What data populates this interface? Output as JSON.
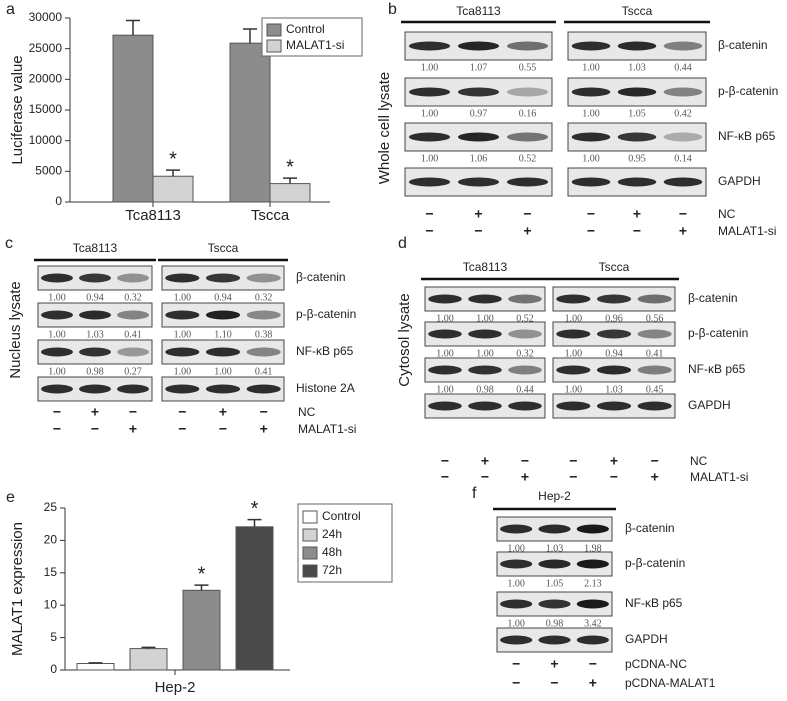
{
  "chart_data": [
    {
      "type": "bar",
      "panel_label": "a",
      "ylabel": "Luciferase value",
      "categories": [
        "Tca8113",
        "Tscca"
      ],
      "series": [
        {
          "name": "Control",
          "color": "#8c8c8c",
          "values": [
            27200,
            25900
          ],
          "errors": [
            2400,
            2300
          ]
        },
        {
          "name": "MALAT1-si",
          "color": "#d2d2d2",
          "values": [
            4200,
            3000
          ],
          "errors": [
            1000,
            900
          ],
          "markers": [
            "*",
            "*"
          ]
        }
      ],
      "ylim": [
        0,
        30000
      ],
      "yticks": [
        0,
        5000,
        10000,
        15000,
        20000,
        25000,
        30000
      ]
    },
    {
      "type": "bar",
      "panel_label": "e",
      "ylabel": "MALAT1 expression",
      "categories": [
        "Hep-2"
      ],
      "series": [
        {
          "name": "Control",
          "color": "#ffffff",
          "values": [
            1.0
          ],
          "errors": [
            0.1
          ]
        },
        {
          "name": "24h",
          "color": "#d3d3d3",
          "values": [
            3.3
          ],
          "errors": [
            0.2
          ]
        },
        {
          "name": "48h",
          "color": "#8c8c8c",
          "values": [
            12.3
          ],
          "errors": [
            0.8
          ],
          "markers": [
            "*"
          ]
        },
        {
          "name": "72h",
          "color": "#4a4a4a",
          "values": [
            22.1
          ],
          "errors": [
            1.1
          ],
          "markers": [
            "*"
          ]
        }
      ],
      "ylim": [
        0,
        25
      ],
      "yticks": [
        0,
        5,
        10,
        15,
        20,
        25
      ]
    }
  ],
  "blots": [
    {
      "panel_label": "b",
      "side_label": "Whole cell lysate",
      "groups": [
        "Tca8113",
        "Tscca"
      ],
      "rows": [
        {
          "name": "β-catenin",
          "values": [
            [
              "1.00",
              "1.07",
              "0.55"
            ],
            [
              "1.00",
              "1.03",
              "0.44"
            ]
          ]
        },
        {
          "name": "p-β-catenin",
          "values": [
            [
              "1.00",
              "0.97",
              "0.16"
            ],
            [
              "1.00",
              "1.05",
              "0.42"
            ]
          ]
        },
        {
          "name": "NF-κB p65",
          "values": [
            [
              "1.00",
              "1.06",
              "0.52"
            ],
            [
              "1.00",
              "0.95",
              "0.14"
            ]
          ]
        },
        {
          "name": "GAPDH"
        }
      ],
      "conditions": [
        {
          "name": "NC",
          "signs": [
            "−",
            "+",
            "−",
            "−",
            "+",
            "−"
          ]
        },
        {
          "name": "MALAT1-si",
          "signs": [
            "−",
            "−",
            "+",
            "−",
            "−",
            "+"
          ]
        }
      ]
    },
    {
      "panel_label": "c",
      "side_label": "Nucleus lysate",
      "groups": [
        "Tca8113",
        "Tscca"
      ],
      "rows": [
        {
          "name": "β-catenin",
          "values": [
            [
              "1.00",
              "0.94",
              "0.32"
            ],
            [
              "1.00",
              "0.94",
              "0.32"
            ]
          ]
        },
        {
          "name": "p-β-catenin",
          "values": [
            [
              "1.00",
              "1.03",
              "0.41"
            ],
            [
              "1.00",
              "1.10",
              "0.38"
            ]
          ]
        },
        {
          "name": "NF-κB p65",
          "values": [
            [
              "1.00",
              "0.98",
              "0.27"
            ],
            [
              "1.00",
              "1.00",
              "0.41"
            ]
          ]
        },
        {
          "name": "Histone 2A"
        }
      ],
      "conditions": [
        {
          "name": "NC",
          "signs": [
            "−",
            "+",
            "−",
            "−",
            "+",
            "−"
          ]
        },
        {
          "name": "MALAT1-si",
          "signs": [
            "−",
            "−",
            "+",
            "−",
            "−",
            "+"
          ]
        }
      ]
    },
    {
      "panel_label": "d",
      "side_label": "Cytosol lysate",
      "groups": [
        "Tca8113",
        "Tscca"
      ],
      "rows": [
        {
          "name": "β-catenin",
          "values": [
            [
              "1.00",
              "1.00",
              "0.52"
            ],
            [
              "1.00",
              "0.96",
              "0.56"
            ]
          ]
        },
        {
          "name": "p-β-catenin",
          "values": [
            [
              "1.00",
              "1.00",
              "0.32"
            ],
            [
              "1.00",
              "0.94",
              "0.41"
            ]
          ]
        },
        {
          "name": "NF-κB p65",
          "values": [
            [
              "1.00",
              "0.98",
              "0.44"
            ],
            [
              "1.00",
              "1.03",
              "0.45"
            ]
          ]
        },
        {
          "name": "GAPDH"
        }
      ],
      "conditions": [
        {
          "name": "NC",
          "signs": [
            "−",
            "+",
            "−",
            "−",
            "+",
            "−"
          ]
        },
        {
          "name": "MALAT1-si",
          "signs": [
            "−",
            "−",
            "+",
            "−",
            "−",
            "+"
          ]
        }
      ]
    },
    {
      "panel_label": "f",
      "groups": [
        "Hep-2"
      ],
      "rows": [
        {
          "name": "β-catenin",
          "values": [
            [
              "1.00",
              "1.03",
              "1.98"
            ]
          ]
        },
        {
          "name": "p-β-catenin",
          "values": [
            [
              "1.00",
              "1.05",
              "2.13"
            ]
          ]
        },
        {
          "name": "NF-κB p65",
          "values": [
            [
              "1.00",
              "0.98",
              "3.42"
            ]
          ]
        },
        {
          "name": "GAPDH"
        }
      ],
      "conditions": [
        {
          "name": "pCDNA-NC",
          "signs": [
            "−",
            "+",
            "−"
          ]
        },
        {
          "name": "pCDNA-MALAT1",
          "signs": [
            "−",
            "−",
            "+"
          ]
        }
      ]
    }
  ]
}
